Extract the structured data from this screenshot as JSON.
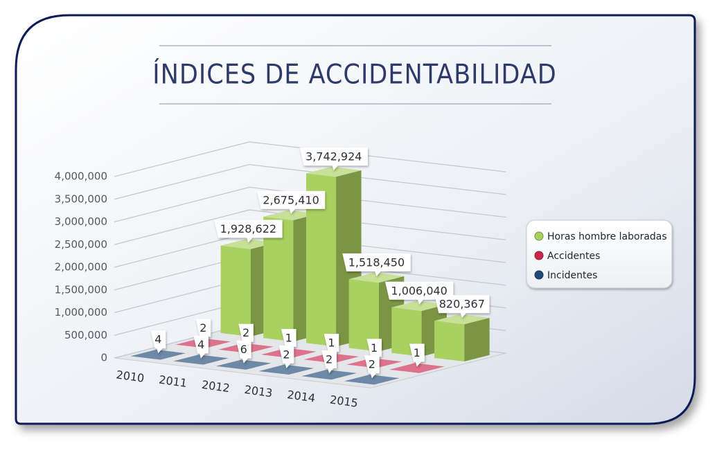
{
  "chart_data": {
    "type": "bar3d",
    "title": "ÍNDICES DE ACCIDENTABILIDAD",
    "categories": [
      "2010",
      "2011",
      "2012",
      "2013",
      "2014",
      "2015"
    ],
    "series": [
      {
        "name": "Horas hombre laboradas",
        "color": "#a9d160",
        "values": [
          1928622,
          2675410,
          3742924,
          1518450,
          1006040,
          820367
        ],
        "value_labels": [
          "1,928,622",
          "2,675,410",
          "3,742,924",
          "1,518,450",
          "1,006,040",
          "820,367"
        ]
      },
      {
        "name": "Accidentes",
        "color": "#c9264c",
        "values": [
          2,
          2,
          1,
          1,
          1,
          1
        ]
      },
      {
        "name": "Incidentes",
        "color": "#1f4a78",
        "values": [
          4,
          4,
          6,
          2,
          2,
          2
        ]
      }
    ],
    "ylim": [
      0,
      4000000
    ],
    "yticks": [
      0,
      {
        "value": 500000,
        "label": "500,000"
      },
      {
        "value": 1000000,
        "label": "1,000,000"
      },
      {
        "value": 1500000,
        "label": "1,500,000"
      },
      {
        "value": 2000000,
        "label": "2,000,000"
      },
      {
        "value": 2500000,
        "label": "2,500,000"
      },
      {
        "value": 3000000,
        "label": "3,000,000"
      },
      {
        "value": 3500000,
        "label": "3,500,000"
      },
      {
        "value": 4000000,
        "label": "4,000,000"
      }
    ],
    "grid": true,
    "legend": "right"
  }
}
